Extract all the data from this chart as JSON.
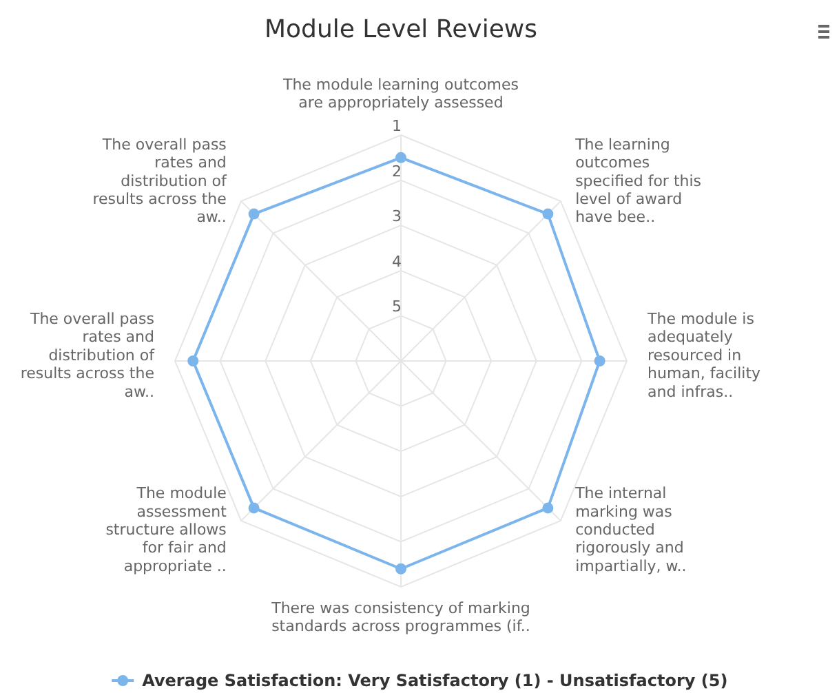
{
  "chart_data": {
    "type": "radar",
    "title": "Module Level Reviews",
    "categories": [
      "The module learning outcomes are appropriately assessed",
      "The learning outcomes specified for this level of award have bee..",
      "The module is adequately resourced in human, facility and infras..",
      "The internal marking was conducted rigorously and impartially, w..",
      "There was consistency of marking standards across programmes (if..",
      "The module assessment structure allows for fair and appropriate ..",
      "The overall pass rates and distribution of results across the aw..",
      "The overall pass rates and distribution of results across the aw.."
    ],
    "series": [
      {
        "name": "Average Satisfaction: Very Satisfactory (1) - Unsatisfactory (5)",
        "color": "#7cb5ec",
        "values": [
          1.5,
          1.4,
          1.6,
          1.4,
          1.4,
          1.4,
          1.4,
          1.4
        ]
      }
    ],
    "ylim": [
      6,
      1
    ],
    "yticks": [
      1,
      2,
      3,
      4,
      5
    ],
    "grid": true,
    "legend": "bottom",
    "marker": "circle"
  }
}
